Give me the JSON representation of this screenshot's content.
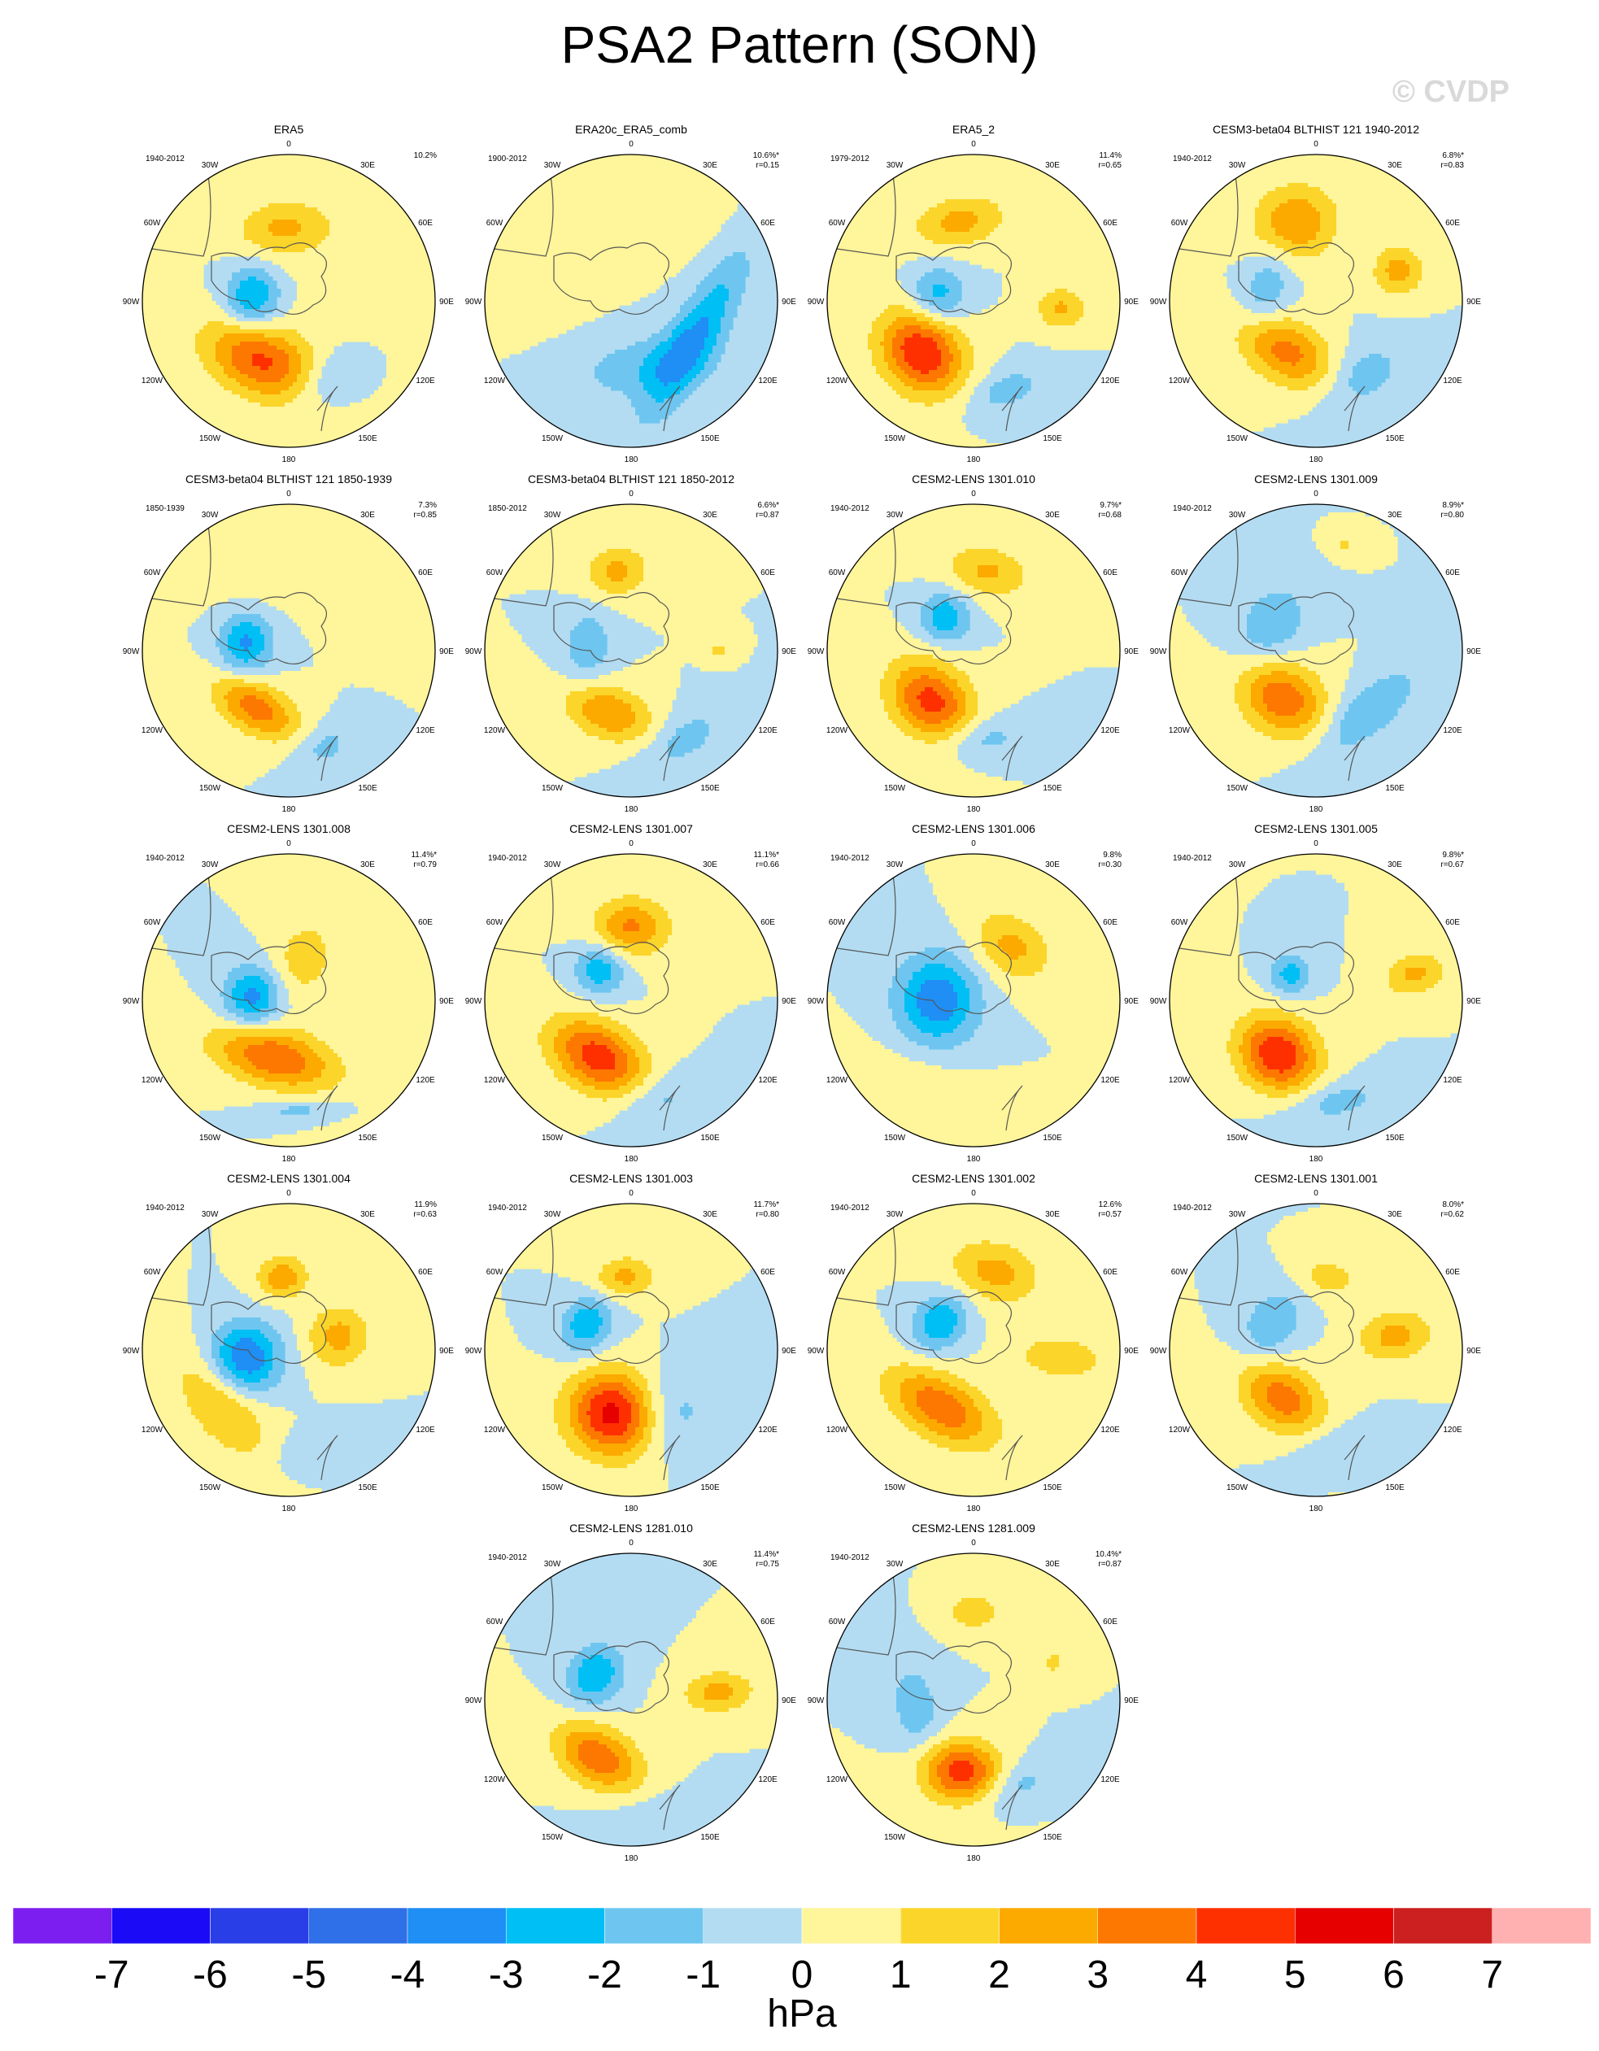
{
  "title": "PSA2 Pattern (SON)",
  "watermark": "© CVDP",
  "lon_labels": [
    "0",
    "30E",
    "60E",
    "90E",
    "120E",
    "150E",
    "180",
    "150W",
    "120W",
    "90W",
    "60W",
    "30W"
  ],
  "palette": [
    "#7d1ef0",
    "#1a0af5",
    "#2a3ee8",
    "#2f6fe8",
    "#1f8ef5",
    "#00bff5",
    "#6ec6f0",
    "#b3dcf2",
    "#fff59a",
    "#fcd52a",
    "#fcaa00",
    "#fc7800",
    "#ff3000",
    "#e60000",
    "#cc1f1f",
    "#ffb0b0"
  ],
  "chart_data": {
    "type": "heatmap",
    "title": "PSA2 Pattern (SON)",
    "colorbar": {
      "ticks": [
        "-7",
        "-6",
        "-5",
        "-4",
        "-3",
        "-2",
        "-1",
        "0",
        "1",
        "2",
        "3",
        "4",
        "5",
        "6",
        "7"
      ],
      "unit": "hPa",
      "levels": [
        -7,
        -6,
        -5,
        -4,
        -3,
        -2,
        -1,
        0,
        1,
        2,
        3,
        4,
        5,
        6,
        7
      ]
    },
    "panels": [
      {
        "name": "ERA5",
        "period": "1940-2012",
        "pct": "10.2%",
        "r": "",
        "blobs": [
          {
            "lon": -155,
            "rad": 0.45,
            "amp": 4.2,
            "rx": 0.28,
            "ry": 0.17
          },
          {
            "lon": -85,
            "rad": 0.25,
            "amp": -3.2,
            "rx": 0.15,
            "ry": 0.13
          },
          {
            "lon": -5,
            "rad": 0.5,
            "amp": 2.2,
            "rx": 0.22,
            "ry": 0.13
          },
          {
            "lon": 80,
            "rad": 0.5,
            "amp": 0.5,
            "rx": 0.4,
            "ry": 0.3
          },
          {
            "lon": 150,
            "rad": 0.6,
            "amp": -1.6,
            "rx": 0.2,
            "ry": 0.12
          }
        ]
      },
      {
        "name": "ERA20c_ERA5_comb",
        "period": "1900-2012",
        "pct": "10.6%*",
        "r": "r=0.15",
        "blobs": [
          {
            "lon": 120,
            "rad": 0.5,
            "amp": -3.0,
            "rx": 0.45,
            "ry": 0.12
          },
          {
            "lon": 170,
            "rad": 0.45,
            "amp": -1.6,
            "rx": 0.35,
            "ry": 0.15
          },
          {
            "lon": -60,
            "rad": 0.8,
            "amp": 0.7,
            "rx": 0.3,
            "ry": 0.3
          },
          {
            "lon": 20,
            "rad": 0.8,
            "amp": 0.6,
            "rx": 0.25,
            "ry": 0.25
          }
        ]
      },
      {
        "name": "ERA5_2",
        "period": "1979-2012",
        "pct": "11.4%",
        "r": "r=0.65",
        "blobs": [
          {
            "lon": -135,
            "rad": 0.5,
            "amp": 5.0,
            "rx": 0.22,
            "ry": 0.18
          },
          {
            "lon": -80,
            "rad": 0.25,
            "amp": -2.6,
            "rx": 0.13,
            "ry": 0.13
          },
          {
            "lon": -10,
            "rad": 0.55,
            "amp": 2.4,
            "rx": 0.22,
            "ry": 0.12
          },
          {
            "lon": 95,
            "rad": 0.6,
            "amp": 2.2,
            "rx": 0.1,
            "ry": 0.12
          },
          {
            "lon": 160,
            "rad": 0.65,
            "amp": -1.5,
            "rx": 0.2,
            "ry": 0.1
          }
        ]
      },
      {
        "name": "CESM3-beta04 BLTHIST 121 1940-2012",
        "period": "1940-2012",
        "pct": "6.8%*",
        "r": "r=0.83",
        "blobs": [
          {
            "lon": -150,
            "rad": 0.4,
            "amp": 3.4,
            "rx": 0.26,
            "ry": 0.15
          },
          {
            "lon": -75,
            "rad": 0.35,
            "amp": -1.8,
            "rx": 0.2,
            "ry": 0.12
          },
          {
            "lon": -15,
            "rad": 0.55,
            "amp": 3.0,
            "rx": 0.2,
            "ry": 0.18
          },
          {
            "lon": 70,
            "rad": 0.6,
            "amp": 2.5,
            "rx": 0.12,
            "ry": 0.12
          },
          {
            "lon": 150,
            "rad": 0.6,
            "amp": -1.7,
            "rx": 0.22,
            "ry": 0.14
          }
        ]
      },
      {
        "name": "CESM3-beta04 BLTHIST 121 1850-1939",
        "period": "1850-1939",
        "pct": "7.3%",
        "r": "r=0.85",
        "blobs": [
          {
            "lon": -150,
            "rad": 0.45,
            "amp": 3.6,
            "rx": 0.22,
            "ry": 0.12
          },
          {
            "lon": -80,
            "rad": 0.3,
            "amp": -3.2,
            "rx": 0.15,
            "ry": 0.13
          },
          {
            "lon": -10,
            "rad": 0.6,
            "amp": 0.8,
            "rx": 0.3,
            "ry": 0.2
          },
          {
            "lon": 60,
            "rad": 0.9,
            "amp": 0.6,
            "rx": 0.2,
            "ry": 0.2
          },
          {
            "lon": 160,
            "rad": 0.7,
            "amp": -1.4,
            "rx": 0.15,
            "ry": 0.1
          }
        ]
      },
      {
        "name": "CESM3-beta04 BLTHIST 121 1850-2012",
        "period": "1850-2012",
        "pct": "6.6%*",
        "r": "r=0.87",
        "blobs": [
          {
            "lon": -160,
            "rad": 0.45,
            "amp": 3.0,
            "rx": 0.22,
            "ry": 0.13
          },
          {
            "lon": -85,
            "rad": 0.3,
            "amp": -1.8,
            "rx": 0.18,
            "ry": 0.12
          },
          {
            "lon": -10,
            "rad": 0.55,
            "amp": 2.3,
            "rx": 0.15,
            "ry": 0.12
          },
          {
            "lon": 90,
            "rad": 0.6,
            "amp": 1.2,
            "rx": 0.05,
            "ry": 0.06
          },
          {
            "lon": 150,
            "rad": 0.7,
            "amp": -1.5,
            "rx": 0.22,
            "ry": 0.12
          }
        ]
      },
      {
        "name": "CESM2-LENS 1301.010",
        "period": "1940-2012",
        "pct": "9.7%*",
        "r": "r=0.68",
        "blobs": [
          {
            "lon": -140,
            "rad": 0.45,
            "amp": 4.4,
            "rx": 0.22,
            "ry": 0.17
          },
          {
            "lon": -40,
            "rad": 0.3,
            "amp": -2.8,
            "rx": 0.12,
            "ry": 0.12
          },
          {
            "lon": 10,
            "rad": 0.55,
            "amp": 2.2,
            "rx": 0.2,
            "ry": 0.12
          },
          {
            "lon": 175,
            "rad": 0.6,
            "amp": -1.6,
            "rx": 0.2,
            "ry": 0.1
          }
        ]
      },
      {
        "name": "CESM2-LENS 1301.009",
        "period": "1940-2012",
        "pct": "8.9%*",
        "r": "r=0.80",
        "blobs": [
          {
            "lon": -145,
            "rad": 0.4,
            "amp": 3.8,
            "rx": 0.22,
            "ry": 0.17
          },
          {
            "lon": -60,
            "rad": 0.35,
            "amp": -2.0,
            "rx": 0.2,
            "ry": 0.15
          },
          {
            "lon": 15,
            "rad": 0.75,
            "amp": 1.2,
            "rx": 0.07,
            "ry": 0.05
          },
          {
            "lon": 140,
            "rad": 0.55,
            "amp": -2.0,
            "rx": 0.3,
            "ry": 0.12
          }
        ]
      },
      {
        "name": "CESM2-LENS 1301.008",
        "period": "1940-2012",
        "pct": "11.4%*",
        "r": "r=0.79",
        "blobs": [
          {
            "lon": -165,
            "rad": 0.4,
            "amp": 4.0,
            "rx": 0.3,
            "ry": 0.14
          },
          {
            "lon": -85,
            "rad": 0.25,
            "amp": -3.4,
            "rx": 0.15,
            "ry": 0.14
          },
          {
            "lon": 20,
            "rad": 0.3,
            "amp": 1.6,
            "rx": 0.15,
            "ry": 0.2
          },
          {
            "lon": 175,
            "rad": 0.75,
            "amp": -1.4,
            "rx": 0.2,
            "ry": 0.05
          }
        ]
      },
      {
        "name": "CESM2-LENS 1301.007",
        "period": "1940-2012",
        "pct": "11.1%*",
        "r": "r=0.66",
        "blobs": [
          {
            "lon": -150,
            "rad": 0.45,
            "amp": 4.6,
            "rx": 0.25,
            "ry": 0.16
          },
          {
            "lon": -45,
            "rad": 0.3,
            "amp": -2.8,
            "rx": 0.12,
            "ry": 0.12
          },
          {
            "lon": 0,
            "rad": 0.5,
            "amp": 3.2,
            "rx": 0.18,
            "ry": 0.14
          },
          {
            "lon": 165,
            "rad": 0.7,
            "amp": -1.5,
            "rx": 0.2,
            "ry": 0.12
          }
        ]
      },
      {
        "name": "CESM2-LENS 1301.006",
        "period": "1940-2012",
        "pct": "9.8%",
        "r": "r=0.30",
        "blobs": [
          {
            "lon": -90,
            "rad": 0.25,
            "amp": -3.8,
            "rx": 0.22,
            "ry": 0.2
          },
          {
            "lon": 35,
            "rad": 0.45,
            "amp": 2.3,
            "rx": 0.2,
            "ry": 0.15
          },
          {
            "lon": -150,
            "rad": 0.7,
            "amp": 0.7,
            "rx": 0.3,
            "ry": 0.2
          }
        ]
      },
      {
        "name": "CESM2-LENS 1301.005",
        "period": "1940-2012",
        "pct": "9.8%*",
        "r": "r=0.67",
        "blobs": [
          {
            "lon": -145,
            "rad": 0.45,
            "amp": 5.0,
            "rx": 0.2,
            "ry": 0.17
          },
          {
            "lon": -45,
            "rad": 0.25,
            "amp": -2.5,
            "rx": 0.1,
            "ry": 0.1
          },
          {
            "lon": 75,
            "rad": 0.7,
            "amp": 2.3,
            "rx": 0.1,
            "ry": 0.15
          },
          {
            "lon": 170,
            "rad": 0.7,
            "amp": -1.5,
            "rx": 0.25,
            "ry": 0.1
          }
        ]
      },
      {
        "name": "CESM2-LENS 1301.004",
        "period": "1940-2012",
        "pct": "11.9%",
        "r": "r=0.63",
        "blobs": [
          {
            "lon": -100,
            "rad": 0.3,
            "amp": -4.0,
            "rx": 0.17,
            "ry": 0.17
          },
          {
            "lon": -130,
            "rad": 0.6,
            "amp": 2.2,
            "rx": 0.3,
            "ry": 0.15
          },
          {
            "lon": -5,
            "rad": 0.5,
            "amp": 2.8,
            "rx": 0.12,
            "ry": 0.1
          },
          {
            "lon": 75,
            "rad": 0.35,
            "amp": 2.4,
            "rx": 0.15,
            "ry": 0.15
          },
          {
            "lon": 165,
            "rad": 0.7,
            "amp": -1.0,
            "rx": 0.2,
            "ry": 0.1
          }
        ]
      },
      {
        "name": "CESM2-LENS 1301.003",
        "period": "1940-2012",
        "pct": "11.7%*",
        "r": "r=0.80",
        "blobs": [
          {
            "lon": -165,
            "rad": 0.45,
            "amp": 5.6,
            "rx": 0.22,
            "ry": 0.2
          },
          {
            "lon": -60,
            "rad": 0.35,
            "amp": -2.8,
            "rx": 0.15,
            "ry": 0.12
          },
          {
            "lon": -5,
            "rad": 0.5,
            "amp": 2.3,
            "rx": 0.15,
            "ry": 0.1
          },
          {
            "lon": 150,
            "rad": 0.5,
            "amp": -1.8,
            "rx": 0.2,
            "ry": 0.2
          }
        ]
      },
      {
        "name": "CESM2-LENS 1301.002",
        "period": "1940-2012",
        "pct": "12.6%",
        "r": "r=0.57",
        "blobs": [
          {
            "lon": -150,
            "rad": 0.45,
            "amp": 3.8,
            "rx": 0.28,
            "ry": 0.15
          },
          {
            "lon": -50,
            "rad": 0.3,
            "amp": -3.0,
            "rx": 0.15,
            "ry": 0.12
          },
          {
            "lon": 15,
            "rad": 0.55,
            "amp": 2.4,
            "rx": 0.22,
            "ry": 0.15
          },
          {
            "lon": 95,
            "rad": 0.6,
            "amp": 2.0,
            "rx": 0.1,
            "ry": 0.2
          }
        ]
      },
      {
        "name": "CESM2-LENS 1301.001",
        "period": "1940-2012",
        "pct": "8.0%*",
        "r": "r=0.62",
        "blobs": [
          {
            "lon": -145,
            "rad": 0.4,
            "amp": 3.6,
            "rx": 0.22,
            "ry": 0.15
          },
          {
            "lon": -60,
            "rad": 0.35,
            "amp": -2.0,
            "rx": 0.18,
            "ry": 0.13
          },
          {
            "lon": 10,
            "rad": 0.5,
            "amp": 1.5,
            "rx": 0.15,
            "ry": 0.1
          },
          {
            "lon": 80,
            "rad": 0.55,
            "amp": 2.4,
            "rx": 0.12,
            "ry": 0.18
          },
          {
            "lon": 170,
            "rad": 0.65,
            "amp": -1.0,
            "rx": 0.2,
            "ry": 0.1
          }
        ]
      },
      {
        "name": "CESM2-LENS 1281.010",
        "period": "1940-2012",
        "pct": "11.4%*",
        "r": "r=0.75",
        "blobs": [
          {
            "lon": -150,
            "rad": 0.45,
            "amp": 3.8,
            "rx": 0.22,
            "ry": 0.14
          },
          {
            "lon": -55,
            "rad": 0.3,
            "amp": -3.0,
            "rx": 0.15,
            "ry": 0.13
          },
          {
            "lon": 85,
            "rad": 0.6,
            "amp": 2.4,
            "rx": 0.1,
            "ry": 0.17
          },
          {
            "lon": 170,
            "rad": 0.8,
            "amp": -0.8,
            "rx": 0.3,
            "ry": 0.1
          }
        ]
      },
      {
        "name": "CESM2-LENS 1281.009",
        "period": "1940-2012",
        "pct": "10.4%*",
        "r": "r=0.87",
        "blobs": [
          {
            "lon": -170,
            "rad": 0.5,
            "amp": 4.6,
            "rx": 0.2,
            "ry": 0.15
          },
          {
            "lon": -100,
            "rad": 0.4,
            "amp": -1.6,
            "rx": 0.25,
            "ry": 0.13
          },
          {
            "lon": 0,
            "rad": 0.6,
            "amp": 1.6,
            "rx": 0.15,
            "ry": 0.1
          },
          {
            "lon": 65,
            "rad": 0.6,
            "amp": 1.2,
            "rx": 0.08,
            "ry": 0.08
          },
          {
            "lon": 155,
            "rad": 0.65,
            "amp": -1.6,
            "rx": 0.2,
            "ry": 0.1
          }
        ]
      }
    ]
  }
}
